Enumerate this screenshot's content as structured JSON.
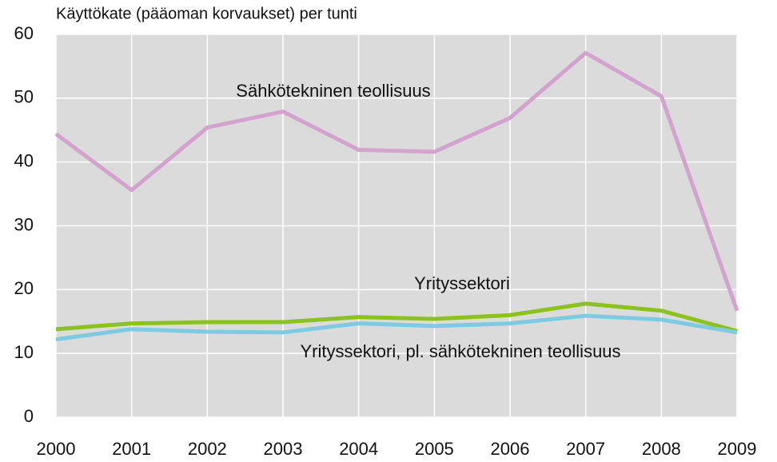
{
  "chart_data": {
    "type": "line",
    "title": "Käyttökate (pääoman korvaukset) per tunti",
    "x": [
      2000,
      2001,
      2002,
      2003,
      2004,
      2005,
      2006,
      2007,
      2008,
      2009
    ],
    "xlim": [
      2000,
      2009
    ],
    "xticks": [
      2000,
      2001,
      2002,
      2003,
      2004,
      2005,
      2006,
      2007,
      2008,
      2009
    ],
    "ylim": [
      0,
      60
    ],
    "yticks": [
      0,
      10,
      20,
      30,
      40,
      50,
      60
    ],
    "grid": true,
    "series": [
      {
        "name": "Sähkötekninen teollisuus",
        "color": "#d4a2cf",
        "values": [
          44.4,
          35.6,
          45.4,
          47.9,
          41.9,
          41.6,
          46.9,
          57.1,
          50.3,
          16.7
        ]
      },
      {
        "name": "Yrityssektori",
        "color": "#8cc31a",
        "values": [
          13.8,
          14.7,
          14.9,
          14.9,
          15.7,
          15.4,
          16.0,
          17.8,
          16.7,
          13.5
        ]
      },
      {
        "name": "Yrityssektori, pl. sähkötekninen teollisuus",
        "color": "#7ccbe2",
        "values": [
          12.2,
          13.8,
          13.4,
          13.3,
          14.7,
          14.3,
          14.7,
          15.9,
          15.3,
          13.3
        ]
      }
    ]
  }
}
